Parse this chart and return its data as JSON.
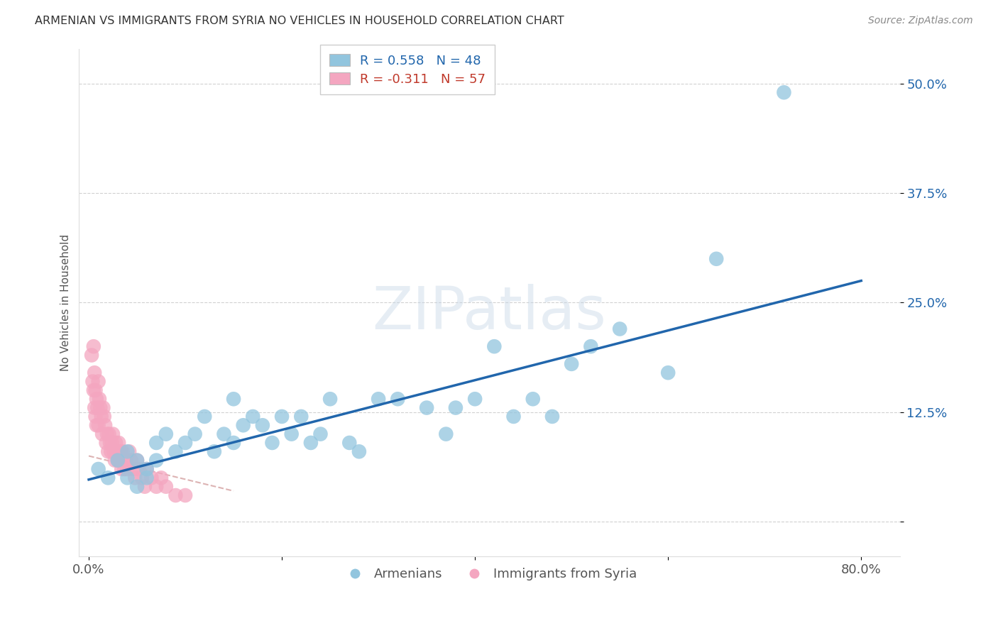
{
  "title": "ARMENIAN VS IMMIGRANTS FROM SYRIA NO VEHICLES IN HOUSEHOLD CORRELATION CHART",
  "source": "Source: ZipAtlas.com",
  "ylabel": "No Vehicles in Household",
  "blue_color": "#92c5de",
  "pink_color": "#f4a6c0",
  "line_blue_color": "#2166ac",
  "line_pink_color": "#b2182b",
  "watermark_text": "ZIPatlas",
  "legend_line1": "R = 0.558   N = 48",
  "legend_line2": "R = -0.311   N = 57",
  "legend_color1": "#2166ac",
  "legend_color2": "#c0392b",
  "bottom_legend": [
    "Armenians",
    "Immigrants from Syria"
  ],
  "ytick_vals": [
    0.0,
    0.125,
    0.25,
    0.375,
    0.5
  ],
  "ytick_labels": [
    "",
    "12.5%",
    "25.0%",
    "37.5%",
    "50.0%"
  ],
  "xtick_vals": [
    0.0,
    0.2,
    0.4,
    0.6,
    0.8
  ],
  "xtick_labels": [
    "0.0%",
    "",
    "",
    "",
    "80.0%"
  ],
  "xlim": [
    -0.01,
    0.84
  ],
  "ylim": [
    -0.04,
    0.54
  ],
  "line_blue_x0": 0.0,
  "line_blue_y0": 0.048,
  "line_blue_x1": 0.8,
  "line_blue_y1": 0.275,
  "line_pink_x0": 0.0,
  "line_pink_y0": 0.075,
  "line_pink_x1": 0.15,
  "line_pink_y1": 0.035,
  "armenian_x": [
    0.01,
    0.02,
    0.03,
    0.04,
    0.04,
    0.05,
    0.05,
    0.06,
    0.06,
    0.07,
    0.07,
    0.08,
    0.09,
    0.1,
    0.11,
    0.12,
    0.13,
    0.14,
    0.15,
    0.15,
    0.16,
    0.17,
    0.18,
    0.19,
    0.2,
    0.21,
    0.22,
    0.23,
    0.24,
    0.25,
    0.27,
    0.28,
    0.3,
    0.32,
    0.35,
    0.37,
    0.38,
    0.4,
    0.42,
    0.44,
    0.46,
    0.48,
    0.5,
    0.52,
    0.55,
    0.6,
    0.65,
    0.72
  ],
  "armenian_y": [
    0.06,
    0.05,
    0.07,
    0.05,
    0.08,
    0.04,
    0.07,
    0.06,
    0.05,
    0.07,
    0.09,
    0.1,
    0.08,
    0.09,
    0.1,
    0.12,
    0.08,
    0.1,
    0.14,
    0.09,
    0.11,
    0.12,
    0.11,
    0.09,
    0.12,
    0.1,
    0.12,
    0.09,
    0.1,
    0.14,
    0.09,
    0.08,
    0.14,
    0.14,
    0.13,
    0.1,
    0.13,
    0.14,
    0.2,
    0.12,
    0.14,
    0.12,
    0.18,
    0.2,
    0.22,
    0.17,
    0.3,
    0.49
  ],
  "syria_x": [
    0.003,
    0.004,
    0.005,
    0.005,
    0.006,
    0.006,
    0.007,
    0.007,
    0.008,
    0.008,
    0.009,
    0.01,
    0.01,
    0.011,
    0.012,
    0.013,
    0.014,
    0.015,
    0.016,
    0.017,
    0.018,
    0.019,
    0.02,
    0.021,
    0.022,
    0.023,
    0.024,
    0.025,
    0.026,
    0.027,
    0.028,
    0.029,
    0.03,
    0.031,
    0.032,
    0.033,
    0.034,
    0.035,
    0.036,
    0.037,
    0.038,
    0.04,
    0.042,
    0.044,
    0.046,
    0.048,
    0.05,
    0.052,
    0.055,
    0.058,
    0.06,
    0.065,
    0.07,
    0.075,
    0.08,
    0.09,
    0.1
  ],
  "syria_y": [
    0.19,
    0.16,
    0.2,
    0.15,
    0.17,
    0.13,
    0.15,
    0.12,
    0.14,
    0.11,
    0.13,
    0.16,
    0.11,
    0.14,
    0.13,
    0.12,
    0.1,
    0.13,
    0.12,
    0.11,
    0.09,
    0.1,
    0.08,
    0.1,
    0.09,
    0.08,
    0.09,
    0.1,
    0.08,
    0.07,
    0.09,
    0.08,
    0.07,
    0.09,
    0.07,
    0.08,
    0.06,
    0.08,
    0.07,
    0.06,
    0.07,
    0.06,
    0.08,
    0.07,
    0.06,
    0.05,
    0.07,
    0.06,
    0.05,
    0.04,
    0.06,
    0.05,
    0.04,
    0.05,
    0.04,
    0.03,
    0.03
  ]
}
